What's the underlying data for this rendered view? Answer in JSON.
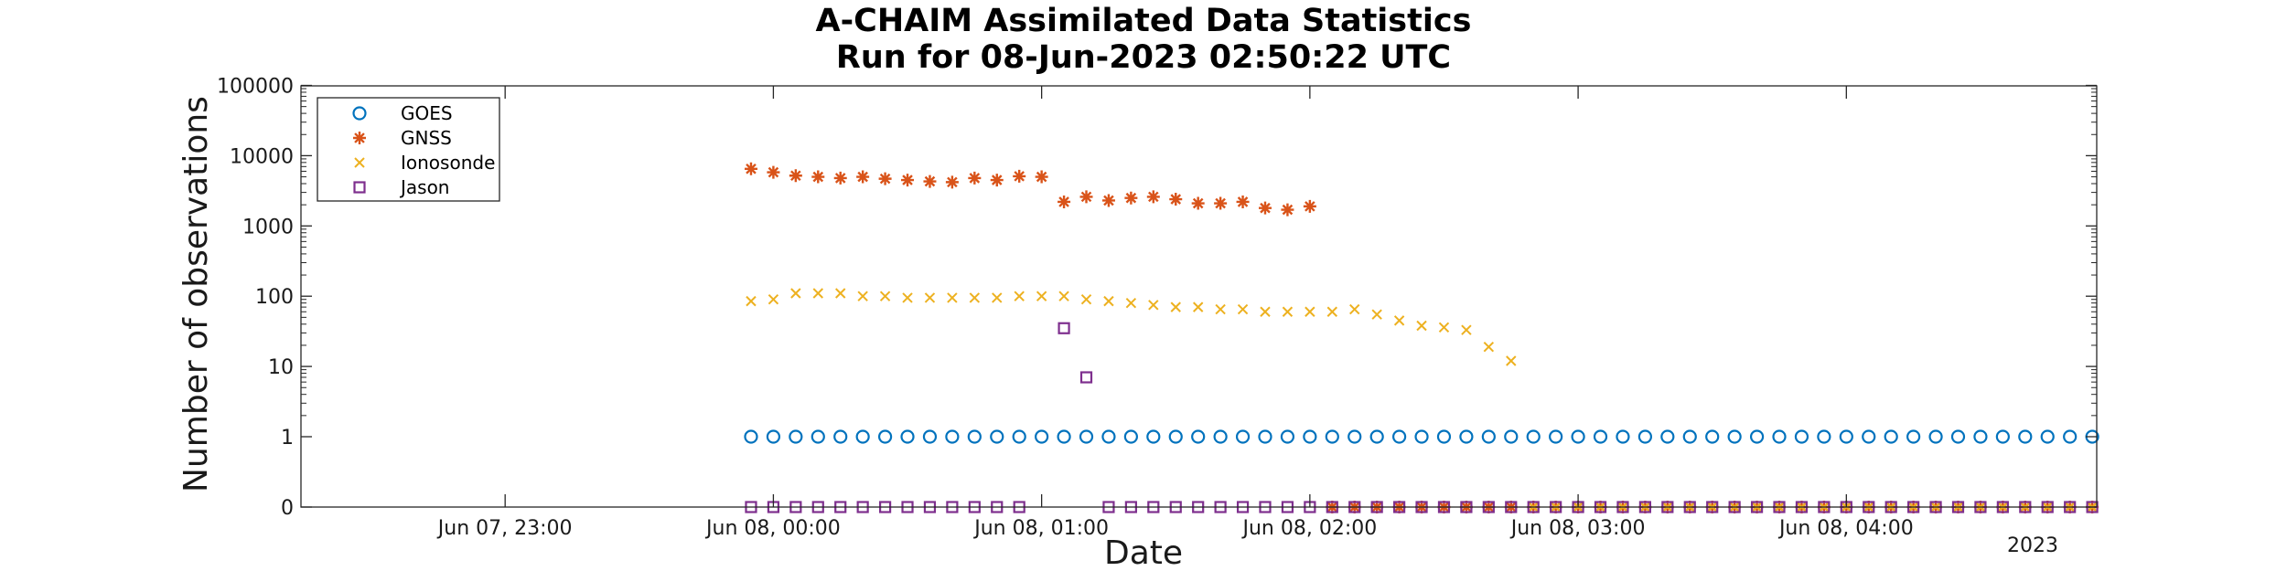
{
  "chart_data": {
    "type": "scatter",
    "title": "A-CHAIM Assimilated Data Statistics",
    "subtitle": "Run for 08-Jun-2023 02:50:22 UTC",
    "xlabel": "Date",
    "ylabel": "Number of observations",
    "x_year_label": "2023",
    "x_range": [
      "2023-06-07 22:15",
      "2023-06-08 04:55"
    ],
    "y_scale": "log with zero row",
    "y_ticks": [
      "0",
      "1",
      "10",
      "100",
      "1000",
      "10000",
      "100000"
    ],
    "x_ticks": [
      {
        "time": "2023-06-07 23:00",
        "label": "Jun 07, 23:00"
      },
      {
        "time": "2023-06-08 00:00",
        "label": "Jun 08, 00:00"
      },
      {
        "time": "2023-06-08 01:00",
        "label": "Jun 08, 01:00"
      },
      {
        "time": "2023-06-08 02:00",
        "label": "Jun 08, 02:00"
      },
      {
        "time": "2023-06-08 03:00",
        "label": "Jun 08, 03:00"
      },
      {
        "time": "2023-06-08 04:00",
        "label": "Jun 08, 04:00"
      }
    ],
    "grid": false,
    "legend_position": "top-left",
    "series": [
      {
        "name": "GOES",
        "marker": "circle",
        "color": "#0072BD",
        "times": [
          "2023-06-07 23:55",
          "2023-06-08 00:00",
          "2023-06-08 00:05",
          "2023-06-08 00:10",
          "2023-06-08 00:15",
          "2023-06-08 00:20",
          "2023-06-08 00:25",
          "2023-06-08 00:30",
          "2023-06-08 00:35",
          "2023-06-08 00:40",
          "2023-06-08 00:45",
          "2023-06-08 00:50",
          "2023-06-08 00:55",
          "2023-06-08 01:00",
          "2023-06-08 01:05",
          "2023-06-08 01:10",
          "2023-06-08 01:15",
          "2023-06-08 01:20",
          "2023-06-08 01:25",
          "2023-06-08 01:30",
          "2023-06-08 01:35",
          "2023-06-08 01:40",
          "2023-06-08 01:45",
          "2023-06-08 01:50",
          "2023-06-08 01:55",
          "2023-06-08 02:00",
          "2023-06-08 02:05",
          "2023-06-08 02:10",
          "2023-06-08 02:15",
          "2023-06-08 02:20",
          "2023-06-08 02:25",
          "2023-06-08 02:30",
          "2023-06-08 02:35",
          "2023-06-08 02:40",
          "2023-06-08 02:45",
          "2023-06-08 02:50",
          "2023-06-08 02:55",
          "2023-06-08 03:00",
          "2023-06-08 03:05",
          "2023-06-08 03:10",
          "2023-06-08 03:15",
          "2023-06-08 03:20",
          "2023-06-08 03:25",
          "2023-06-08 03:30",
          "2023-06-08 03:35",
          "2023-06-08 03:40",
          "2023-06-08 03:45",
          "2023-06-08 03:50",
          "2023-06-08 03:55",
          "2023-06-08 04:00",
          "2023-06-08 04:05",
          "2023-06-08 04:10",
          "2023-06-08 04:15",
          "2023-06-08 04:20",
          "2023-06-08 04:25",
          "2023-06-08 04:30",
          "2023-06-08 04:35",
          "2023-06-08 04:40",
          "2023-06-08 04:45",
          "2023-06-08 04:50",
          "2023-06-08 04:55"
        ],
        "values": [
          1,
          1,
          1,
          1,
          1,
          1,
          1,
          1,
          1,
          1,
          1,
          1,
          1,
          1,
          1,
          1,
          1,
          1,
          1,
          1,
          1,
          1,
          1,
          1,
          1,
          1,
          1,
          1,
          1,
          1,
          1,
          1,
          1,
          1,
          1,
          1,
          1,
          1,
          1,
          1,
          1,
          1,
          1,
          1,
          1,
          1,
          1,
          1,
          1,
          1,
          1,
          1,
          1,
          1,
          1,
          1,
          1,
          1,
          1,
          1,
          1
        ]
      },
      {
        "name": "GNSS",
        "marker": "asterisk",
        "color": "#D95319",
        "times": [
          "2023-06-07 23:55",
          "2023-06-08 00:00",
          "2023-06-08 00:05",
          "2023-06-08 00:10",
          "2023-06-08 00:15",
          "2023-06-08 00:20",
          "2023-06-08 00:25",
          "2023-06-08 00:30",
          "2023-06-08 00:35",
          "2023-06-08 00:40",
          "2023-06-08 00:45",
          "2023-06-08 00:50",
          "2023-06-08 00:55",
          "2023-06-08 01:00",
          "2023-06-08 01:05",
          "2023-06-08 01:10",
          "2023-06-08 01:15",
          "2023-06-08 01:20",
          "2023-06-08 01:25",
          "2023-06-08 01:30",
          "2023-06-08 01:35",
          "2023-06-08 01:40",
          "2023-06-08 01:45",
          "2023-06-08 01:50",
          "2023-06-08 01:55",
          "2023-06-08 02:00",
          "2023-06-08 02:05",
          "2023-06-08 02:10",
          "2023-06-08 02:15",
          "2023-06-08 02:20",
          "2023-06-08 02:25",
          "2023-06-08 02:30",
          "2023-06-08 02:35",
          "2023-06-08 02:40",
          "2023-06-08 02:45",
          "2023-06-08 02:50",
          "2023-06-08 02:55",
          "2023-06-08 03:00",
          "2023-06-08 03:05",
          "2023-06-08 03:10",
          "2023-06-08 03:15",
          "2023-06-08 03:20",
          "2023-06-08 03:25",
          "2023-06-08 03:30",
          "2023-06-08 03:35",
          "2023-06-08 03:40",
          "2023-06-08 03:45",
          "2023-06-08 03:50",
          "2023-06-08 03:55",
          "2023-06-08 04:00",
          "2023-06-08 04:05",
          "2023-06-08 04:10",
          "2023-06-08 04:15",
          "2023-06-08 04:20",
          "2023-06-08 04:25",
          "2023-06-08 04:30",
          "2023-06-08 04:35",
          "2023-06-08 04:40",
          "2023-06-08 04:45",
          "2023-06-08 04:50",
          "2023-06-08 04:55"
        ],
        "values": [
          6500,
          5800,
          5200,
          5000,
          4800,
          5000,
          4700,
          4500,
          4300,
          4200,
          4800,
          4500,
          5100,
          5000,
          2200,
          2600,
          2300,
          2500,
          2600,
          2400,
          2100,
          2100,
          2200,
          1800,
          1700,
          1900,
          0,
          0,
          0,
          0,
          0,
          0,
          0,
          0,
          0,
          0,
          0,
          0,
          0,
          0,
          0,
          0,
          0,
          0,
          0,
          0,
          0,
          0,
          0,
          0,
          0,
          0,
          0,
          0,
          0,
          0,
          0,
          0,
          0,
          0,
          0
        ]
      },
      {
        "name": "Ionosonde",
        "marker": "x",
        "color": "#EDB120",
        "times": [
          "2023-06-07 23:55",
          "2023-06-08 00:00",
          "2023-06-08 00:05",
          "2023-06-08 00:10",
          "2023-06-08 00:15",
          "2023-06-08 00:20",
          "2023-06-08 00:25",
          "2023-06-08 00:30",
          "2023-06-08 00:35",
          "2023-06-08 00:40",
          "2023-06-08 00:45",
          "2023-06-08 00:50",
          "2023-06-08 00:55",
          "2023-06-08 01:00",
          "2023-06-08 01:05",
          "2023-06-08 01:10",
          "2023-06-08 01:15",
          "2023-06-08 01:20",
          "2023-06-08 01:25",
          "2023-06-08 01:30",
          "2023-06-08 01:35",
          "2023-06-08 01:40",
          "2023-06-08 01:45",
          "2023-06-08 01:50",
          "2023-06-08 01:55",
          "2023-06-08 02:00",
          "2023-06-08 02:05",
          "2023-06-08 02:10",
          "2023-06-08 02:15",
          "2023-06-08 02:20",
          "2023-06-08 02:25",
          "2023-06-08 02:30",
          "2023-06-08 02:35",
          "2023-06-08 02:40",
          "2023-06-08 02:45",
          "2023-06-08 02:50",
          "2023-06-08 02:55",
          "2023-06-08 03:00",
          "2023-06-08 03:05",
          "2023-06-08 03:10",
          "2023-06-08 03:15",
          "2023-06-08 03:20",
          "2023-06-08 03:25",
          "2023-06-08 03:30",
          "2023-06-08 03:35",
          "2023-06-08 03:40",
          "2023-06-08 03:45",
          "2023-06-08 03:50",
          "2023-06-08 03:55",
          "2023-06-08 04:00",
          "2023-06-08 04:05",
          "2023-06-08 04:10",
          "2023-06-08 04:15",
          "2023-06-08 04:20",
          "2023-06-08 04:25",
          "2023-06-08 04:30",
          "2023-06-08 04:35",
          "2023-06-08 04:40",
          "2023-06-08 04:45",
          "2023-06-08 04:50",
          "2023-06-08 04:55"
        ],
        "values": [
          85,
          90,
          110,
          110,
          110,
          100,
          100,
          95,
          95,
          95,
          95,
          95,
          100,
          100,
          100,
          90,
          85,
          80,
          75,
          70,
          70,
          65,
          65,
          60,
          60,
          60,
          60,
          65,
          55,
          45,
          38,
          36,
          33,
          19,
          12,
          0,
          0,
          0,
          0,
          0,
          0,
          0,
          0,
          0,
          0,
          0,
          0,
          0,
          0,
          0,
          0,
          0,
          0,
          0,
          0,
          0,
          0,
          0,
          0,
          0,
          0
        ]
      },
      {
        "name": "Jason",
        "marker": "square",
        "color": "#7E2F8E",
        "times": [
          "2023-06-07 23:55",
          "2023-06-08 00:00",
          "2023-06-08 00:05",
          "2023-06-08 00:10",
          "2023-06-08 00:15",
          "2023-06-08 00:20",
          "2023-06-08 00:25",
          "2023-06-08 00:30",
          "2023-06-08 00:35",
          "2023-06-08 00:40",
          "2023-06-08 00:45",
          "2023-06-08 00:50",
          "2023-06-08 00:55",
          "2023-06-08 01:05",
          "2023-06-08 01:10",
          "2023-06-08 01:15",
          "2023-06-08 01:20",
          "2023-06-08 01:25",
          "2023-06-08 01:30",
          "2023-06-08 01:35",
          "2023-06-08 01:40",
          "2023-06-08 01:45",
          "2023-06-08 01:50",
          "2023-06-08 01:55",
          "2023-06-08 02:00",
          "2023-06-08 02:05",
          "2023-06-08 02:10",
          "2023-06-08 02:15",
          "2023-06-08 02:20",
          "2023-06-08 02:25",
          "2023-06-08 02:30",
          "2023-06-08 02:35",
          "2023-06-08 02:40",
          "2023-06-08 02:45",
          "2023-06-08 02:50",
          "2023-06-08 02:55",
          "2023-06-08 03:00",
          "2023-06-08 03:05",
          "2023-06-08 03:10",
          "2023-06-08 03:15",
          "2023-06-08 03:20",
          "2023-06-08 03:25",
          "2023-06-08 03:30",
          "2023-06-08 03:35",
          "2023-06-08 03:40",
          "2023-06-08 03:45",
          "2023-06-08 03:50",
          "2023-06-08 03:55",
          "2023-06-08 04:00",
          "2023-06-08 04:05",
          "2023-06-08 04:10",
          "2023-06-08 04:15",
          "2023-06-08 04:20",
          "2023-06-08 04:25",
          "2023-06-08 04:30",
          "2023-06-08 04:35",
          "2023-06-08 04:40",
          "2023-06-08 04:45",
          "2023-06-08 04:50",
          "2023-06-08 04:55"
        ],
        "values": [
          0,
          0,
          0,
          0,
          0,
          0,
          0,
          0,
          0,
          0,
          0,
          0,
          0,
          35,
          7,
          0,
          0,
          0,
          0,
          0,
          0,
          0,
          0,
          0,
          0,
          0,
          0,
          0,
          0,
          0,
          0,
          0,
          0,
          0,
          0,
          0,
          0,
          0,
          0,
          0,
          0,
          0,
          0,
          0,
          0,
          0,
          0,
          0,
          0,
          0,
          0,
          0,
          0,
          0,
          0,
          0,
          0,
          0,
          0,
          0
        ]
      }
    ]
  }
}
